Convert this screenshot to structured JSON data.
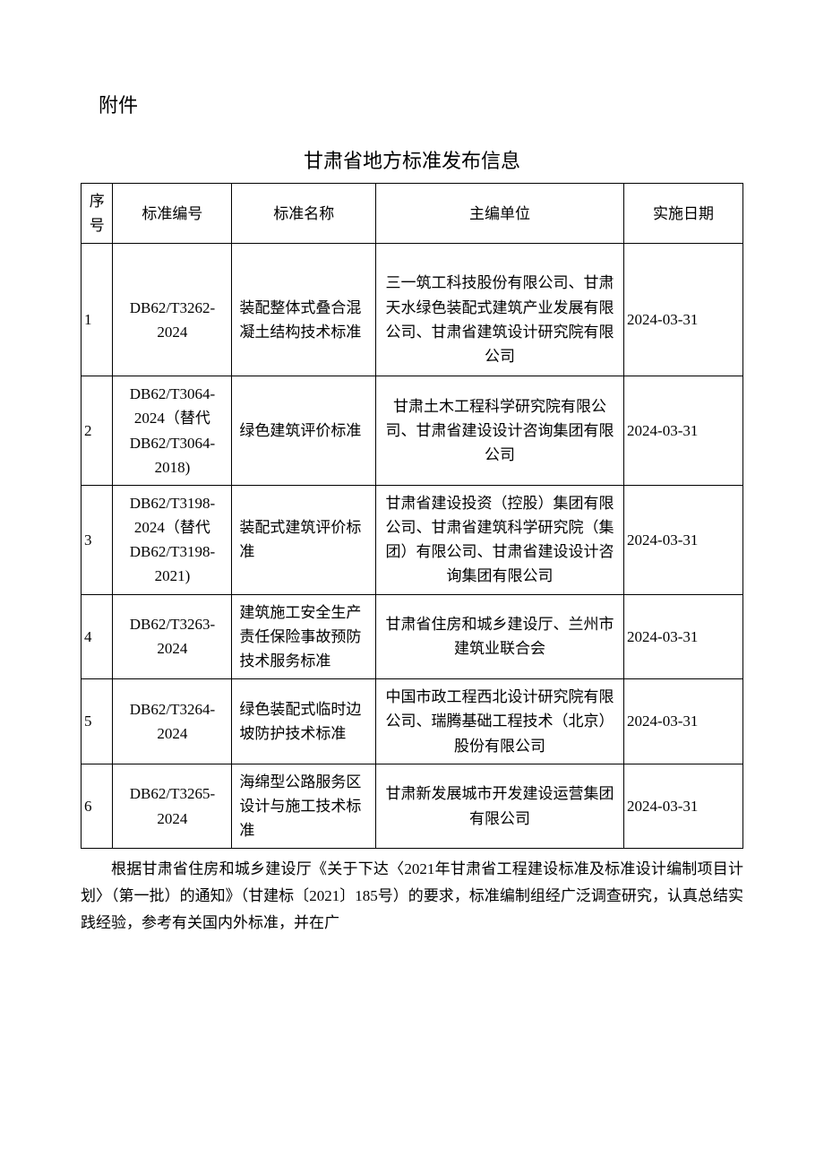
{
  "attachment_label": "附件",
  "title": "甘肃省地方标准发布信息",
  "table": {
    "columns": [
      "序号",
      "标准编号",
      "标准名称",
      "主编单位",
      "实施日期"
    ],
    "rows": [
      {
        "seq": "1",
        "code": "DB62/T3262-2024",
        "name": "装配整体式叠合混凝土结构技术标准",
        "org": "三一筑工科技股份有限公司、甘肃天水绿色装配式建筑产业发展有限公司、甘肃省建筑设计研究院有限公司",
        "date": "2024-03-31"
      },
      {
        "seq": "2",
        "code": "DB62/T3064-2024（替代DB62/T3064-2018)",
        "name": "绿色建筑评价标准",
        "org": "甘肃土木工程科学研究院有限公司、甘肃省建设设计咨询集团有限公司",
        "date": "2024-03-31"
      },
      {
        "seq": "3",
        "code": "DB62/T3198-2024（替代DB62/T3198-2021)",
        "name": "装配式建筑评价标准",
        "org": "甘肃省建设投资（控股）集团有限公司、甘肃省建筑科学研究院（集团）有限公司、甘肃省建设设计咨询集团有限公司",
        "date": "2024-03-31"
      },
      {
        "seq": "4",
        "code": "DB62/T3263-2024",
        "name": "建筑施工安全生产责任保险事故预防技术服务标准",
        "org": "甘肃省住房和城乡建设厅、兰州市建筑业联合会",
        "date": "2024-03-31"
      },
      {
        "seq": "5",
        "code": "DB62/T3264-2024",
        "name": "绿色装配式临时边坡防护技术标准",
        "org": "中国市政工程西北设计研究院有限公司、瑞腾基础工程技术（北京）股份有限公司",
        "date": "2024-03-31"
      },
      {
        "seq": "6",
        "code": "DB62/T3265-2024",
        "name": "海绵型公路服务区设计与施工技术标准",
        "org": "甘肃新发展城市开发建设运营集团有限公司",
        "date": "2024-03-31"
      }
    ]
  },
  "footer_paragraph": "根据甘肃省住房和城乡建设厅《关于下达〈2021年甘肃省工程建设标准及标准设计编制项目计划〉（第一批）的通知》（甘建标〔2021〕185号）的要求，标准编制组经广泛调查研究，认真总结实践经验，参考有关国内外标准，并在广",
  "colors": {
    "text": "#000000",
    "background": "#ffffff",
    "border": "#000000"
  },
  "fontsize": {
    "title": 22,
    "body": 17
  }
}
